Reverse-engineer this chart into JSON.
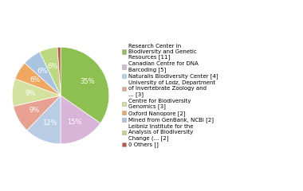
{
  "labels": [
    "Research Center in\nBiodiversity and Genetic\nResources [11]",
    "Canadian Centre for DNA\nBarcoding [5]",
    "Naturalis Biodiversity Center [4]",
    "University of Lodz, Department\nof Invertebrate Zoology and\n... [3]",
    "Centre for Biodiversity\nGenomics [3]",
    "Oxford Nanopore [2]",
    "Mined from GenBank, NCBI [2]",
    "Leibniz Institute for the\nAnalysis of Biodiversity\nChange (... [2]",
    "0 Others []"
  ],
  "values": [
    34,
    15,
    12,
    9,
    9,
    6,
    6,
    6,
    1
  ],
  "colors": [
    "#8dc050",
    "#d8b4d8",
    "#b8cce4",
    "#e8a090",
    "#d4e2a0",
    "#f0a860",
    "#a8c4e0",
    "#bcd880",
    "#c05040"
  ],
  "startangle": 90,
  "text_color": "white",
  "font_size": 6.0,
  "figsize": [
    3.8,
    2.4
  ],
  "dpi": 100
}
